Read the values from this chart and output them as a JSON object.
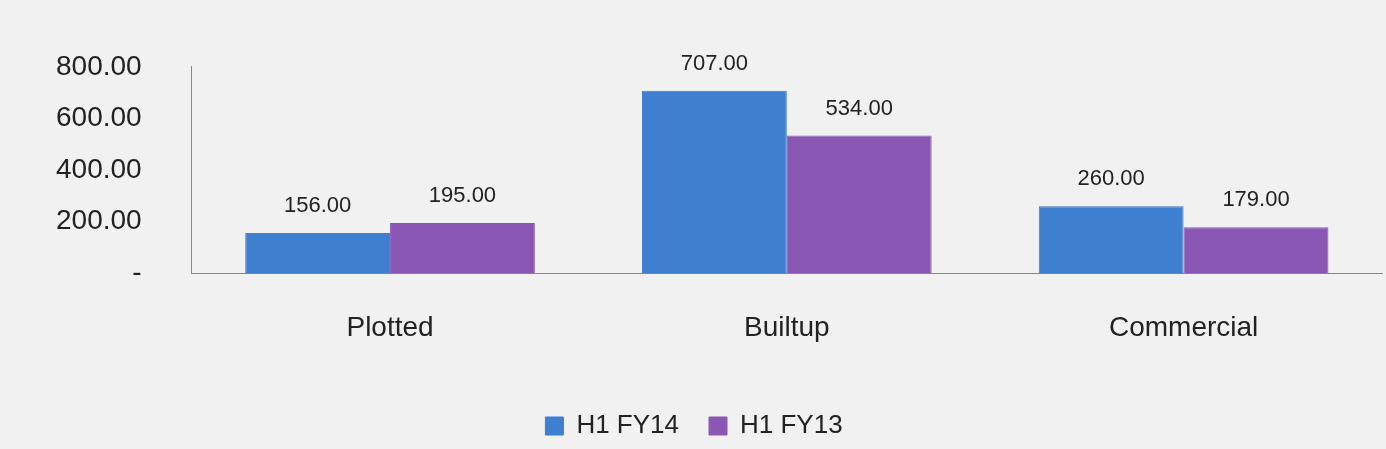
{
  "chart_data": {
    "type": "bar",
    "categories": [
      "Plotted",
      "Builtup",
      "Commercial"
    ],
    "series": [
      {
        "name": "H1 FY14",
        "color": "#3f7fd0",
        "values": [
          156,
          707,
          260
        ],
        "value_labels": [
          "156.00",
          "707.00",
          "260.00"
        ]
      },
      {
        "name": "H1 FY13",
        "color": "#8a58b4",
        "values": [
          195,
          534,
          179
        ],
        "value_labels": [
          "195.00",
          "534.00",
          "179.00"
        ]
      }
    ],
    "ylim": [
      0,
      800
    ],
    "yticks": [
      {
        "value": 0,
        "label": "-"
      },
      {
        "value": 200,
        "label": "200.00"
      },
      {
        "value": 400,
        "label": "400.00"
      },
      {
        "value": 600,
        "label": "600.00"
      },
      {
        "value": 800,
        "label": "800.00"
      }
    ],
    "grid": false,
    "legend": "bottom"
  }
}
